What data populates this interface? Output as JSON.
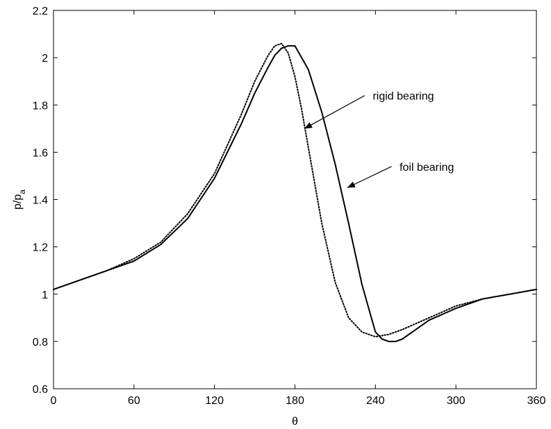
{
  "chart_data": {
    "type": "line",
    "xlabel": "θ",
    "ylabel": "p/p",
    "ylabel_subscript": "a",
    "xlim": [
      0,
      360
    ],
    "ylim": [
      0.6,
      2.2
    ],
    "xticks": [
      0,
      60,
      120,
      180,
      240,
      300,
      360
    ],
    "yticks": [
      0.6,
      0.8,
      1,
      1.2,
      1.4,
      1.6,
      1.8,
      2,
      2.2
    ],
    "xtick_labels": [
      "0",
      "60",
      "120",
      "180",
      "240",
      "300",
      "360"
    ],
    "ytick_labels": [
      "0.6",
      "0.8",
      "1",
      "1.2",
      "1.4",
      "1.6",
      "1.8",
      "2",
      "2.2"
    ],
    "grid": false,
    "series": [
      {
        "style": "solid",
        "x": [
          0,
          20,
          40,
          60,
          80,
          100,
          120,
          140,
          150,
          160,
          165,
          170,
          175,
          180,
          190,
          200,
          210,
          220,
          230,
          240,
          245,
          250,
          255,
          260,
          270,
          280,
          300,
          320,
          340,
          360
        ],
        "y": [
          1.02,
          1.06,
          1.1,
          1.14,
          1.21,
          1.32,
          1.49,
          1.72,
          1.85,
          1.96,
          2.01,
          2.04,
          2.05,
          2.05,
          1.95,
          1.77,
          1.55,
          1.3,
          1.04,
          0.84,
          0.81,
          0.8,
          0.8,
          0.81,
          0.85,
          0.89,
          0.94,
          0.98,
          1.0,
          1.02
        ]
      },
      {
        "style": "dotted",
        "x": [
          0,
          20,
          40,
          60,
          80,
          100,
          120,
          140,
          150,
          160,
          165,
          170,
          175,
          180,
          185,
          190,
          200,
          210,
          220,
          230,
          240,
          250,
          260,
          280,
          300,
          320,
          340,
          360
        ],
        "y": [
          1.02,
          1.06,
          1.1,
          1.15,
          1.22,
          1.34,
          1.51,
          1.76,
          1.9,
          2.01,
          2.05,
          2.06,
          2.02,
          1.92,
          1.78,
          1.62,
          1.3,
          1.05,
          0.9,
          0.84,
          0.82,
          0.83,
          0.85,
          0.9,
          0.95,
          0.98,
          1.0,
          1.02
        ]
      }
    ],
    "annotations": [
      {
        "text": "rigid bearing",
        "points_to_series": 1,
        "label_at": [
          238,
          1.84
        ],
        "arrow_from": [
          232,
          1.84
        ],
        "arrow_to": [
          187,
          1.7
        ]
      },
      {
        "text": "foil bearing",
        "points_to_series": 0,
        "label_at": [
          258,
          1.54
        ],
        "arrow_from": [
          252,
          1.54
        ],
        "arrow_to": [
          219,
          1.45
        ]
      }
    ]
  }
}
